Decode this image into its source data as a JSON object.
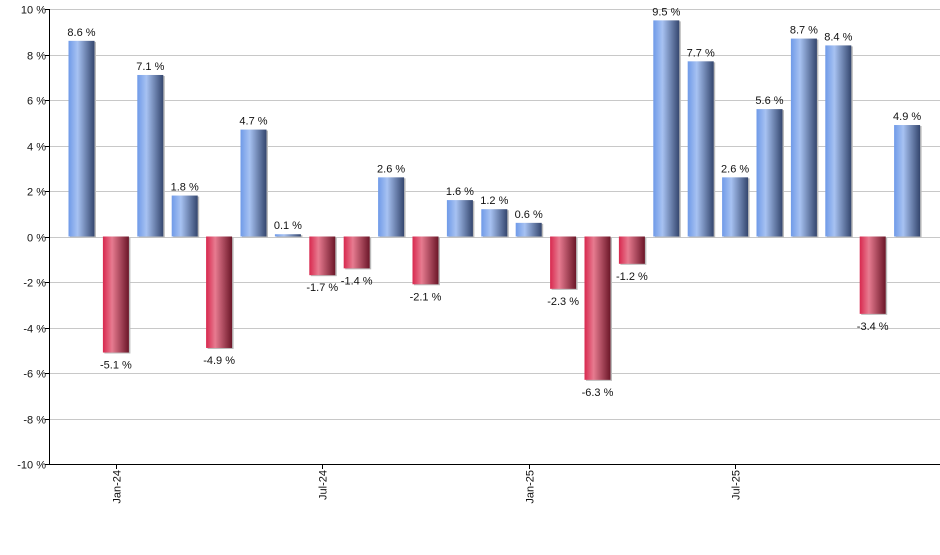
{
  "chart_data": {
    "type": "bar",
    "values": [
      8.6,
      -5.1,
      7.1,
      1.8,
      -4.9,
      4.7,
      0.1,
      -1.7,
      -1.4,
      2.6,
      -2.1,
      1.6,
      1.2,
      0.6,
      -2.3,
      -6.3,
      -1.2,
      9.5,
      7.7,
      2.6,
      5.6,
      8.7,
      8.4,
      -3.4,
      4.9
    ],
    "data_labels": [
      "8.6 %",
      "-5.1 %",
      "7.1 %",
      "1.8 %",
      "-4.9 %",
      "4.7 %",
      "0.1 %",
      "-1.7 %",
      "-1.4 %",
      "2.6 %",
      "-2.1 %",
      "1.6 %",
      "1.2 %",
      "0.6 %",
      "-2.3 %",
      "-6.3 %",
      "-1.2 %",
      "9.5 %",
      "7.7 %",
      "2.6 %",
      "5.6 %",
      "8.7 %",
      "8.4 %",
      "-3.4 %",
      "4.9 %"
    ],
    "x_ticks": [
      {
        "label": "Jan-24",
        "index": 1
      },
      {
        "label": "Jul-24",
        "index": 7
      },
      {
        "label": "Jan-25",
        "index": 13
      },
      {
        "label": "Jul-25",
        "index": 19
      }
    ],
    "y_ticks": [
      "10 %",
      "8 %",
      "6 %",
      "4 %",
      "2 %",
      "0 %",
      "-2 %",
      "-4 %",
      "-6 %",
      "-8 %",
      "-10 %"
    ],
    "ylim": [
      -10,
      10
    ],
    "grid": true,
    "title": "",
    "xlabel": "",
    "ylabel": "",
    "colors": {
      "positive": "#6f95d8",
      "negative": "#c9304f",
      "grid": "#c8c8c8"
    }
  }
}
